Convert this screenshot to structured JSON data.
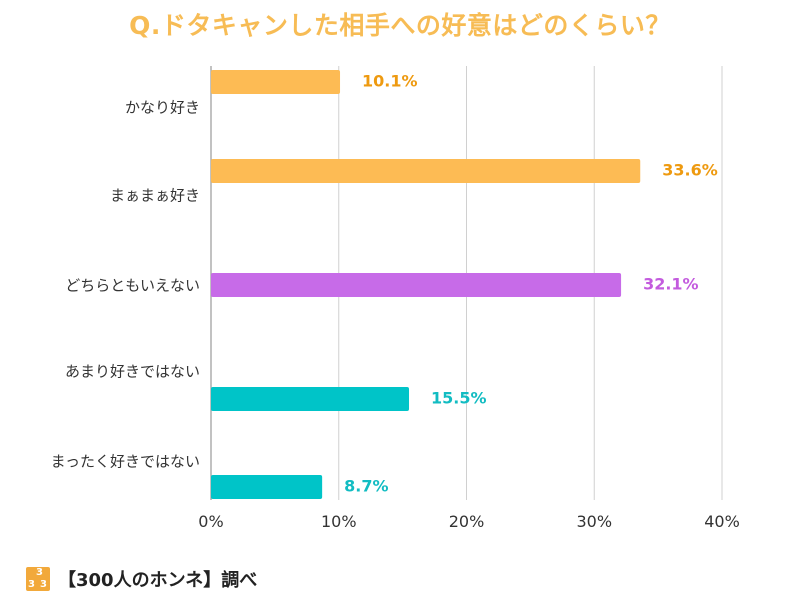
{
  "chart_data": {
    "type": "bar",
    "orientation": "horizontal",
    "title": "Q.ドタキャンした相手への好意はどのくらい？",
    "categories": [
      "かなり好き",
      "まぁまぁ好き",
      "どちらともいえない",
      "あまり好きではない",
      "まったく好きではない"
    ],
    "values": [
      10.1,
      33.6,
      32.1,
      15.5,
      8.7
    ],
    "value_labels": [
      "10.1%",
      "33.6%",
      "32.1%",
      "15.5%",
      "8.7%"
    ],
    "colors": [
      "#FDBB54",
      "#FDBB54",
      "#C76BE8",
      "#00C4C8",
      "#00C4C8"
    ],
    "label_colors": [
      "#EE9A10",
      "#EE9A10",
      "#C35BDE",
      "#12BCC2",
      "#12BCC2"
    ],
    "xlim": [
      0,
      40
    ],
    "xticks": [
      "0%",
      "10%",
      "20%",
      "30%",
      "40%"
    ],
    "grid": true
  },
  "footer": {
    "logo_digits": [
      "3",
      "3",
      "3"
    ],
    "source": "【300人のホンネ】調べ"
  }
}
